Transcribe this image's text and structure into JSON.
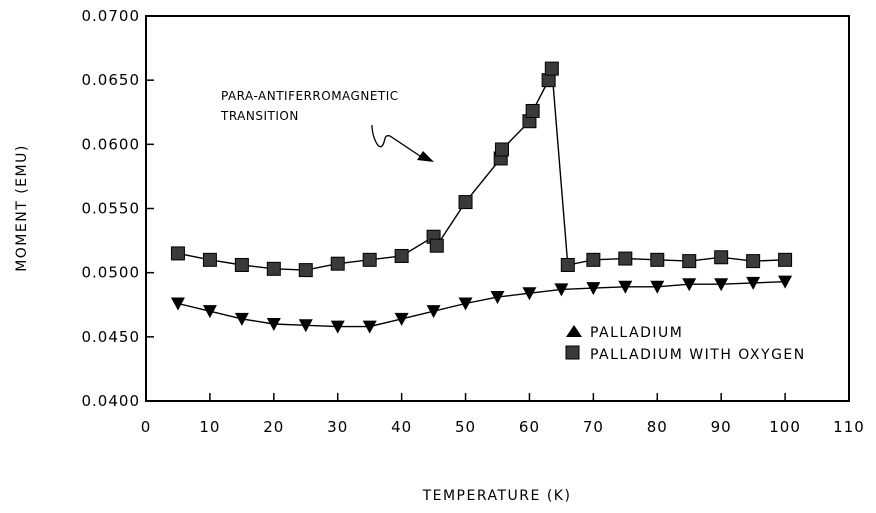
{
  "chart_data": {
    "type": "scatter",
    "xlabel": "TEMPERATURE (K)",
    "ylabel": "MOMENT (EMU)",
    "xlim": [
      0,
      110
    ],
    "ylim": [
      0.04,
      0.07
    ],
    "x_ticks": [
      "0",
      "10",
      "20",
      "30",
      "40",
      "50",
      "60",
      "70",
      "80",
      "90",
      "100",
      "110"
    ],
    "y_ticks": [
      "0.0400",
      "0.0450",
      "0.0500",
      "0.0550",
      "0.0600",
      "0.0650",
      "0.0700"
    ],
    "grid": false,
    "legend_position": "bottom-right",
    "annotation": [
      "PARA-ANTIFERROMAGNETIC",
      "TRANSITION"
    ],
    "series": [
      {
        "name": "PALLADIUM",
        "marker": "triangle",
        "x": [
          5,
          10,
          15,
          20,
          25,
          30,
          35,
          40,
          45,
          50,
          55,
          60,
          65,
          70,
          75,
          80,
          85,
          90,
          95,
          100
        ],
        "y": [
          0.0476,
          0.047,
          0.0464,
          0.046,
          0.0459,
          0.0458,
          0.0458,
          0.0464,
          0.047,
          0.0476,
          0.0481,
          0.0484,
          0.0487,
          0.0488,
          0.0489,
          0.0489,
          0.0491,
          0.0491,
          0.0492,
          0.0493
        ]
      },
      {
        "name": "PALLADIUM WITH OXYGEN",
        "marker": "square",
        "x": [
          5,
          10,
          15,
          20,
          25,
          30,
          35,
          40,
          45,
          45.5,
          50,
          55.5,
          55.7,
          60,
          60.5,
          63,
          63.5,
          66,
          70,
          75,
          80,
          85,
          90,
          95,
          100
        ],
        "y": [
          0.0515,
          0.051,
          0.0506,
          0.0503,
          0.0502,
          0.0507,
          0.051,
          0.0513,
          0.0528,
          0.0521,
          0.0555,
          0.0589,
          0.0596,
          0.0618,
          0.0626,
          0.065,
          0.0659,
          0.0506,
          0.051,
          0.0511,
          0.051,
          0.0509,
          0.0512,
          0.0509,
          0.051
        ]
      }
    ]
  }
}
